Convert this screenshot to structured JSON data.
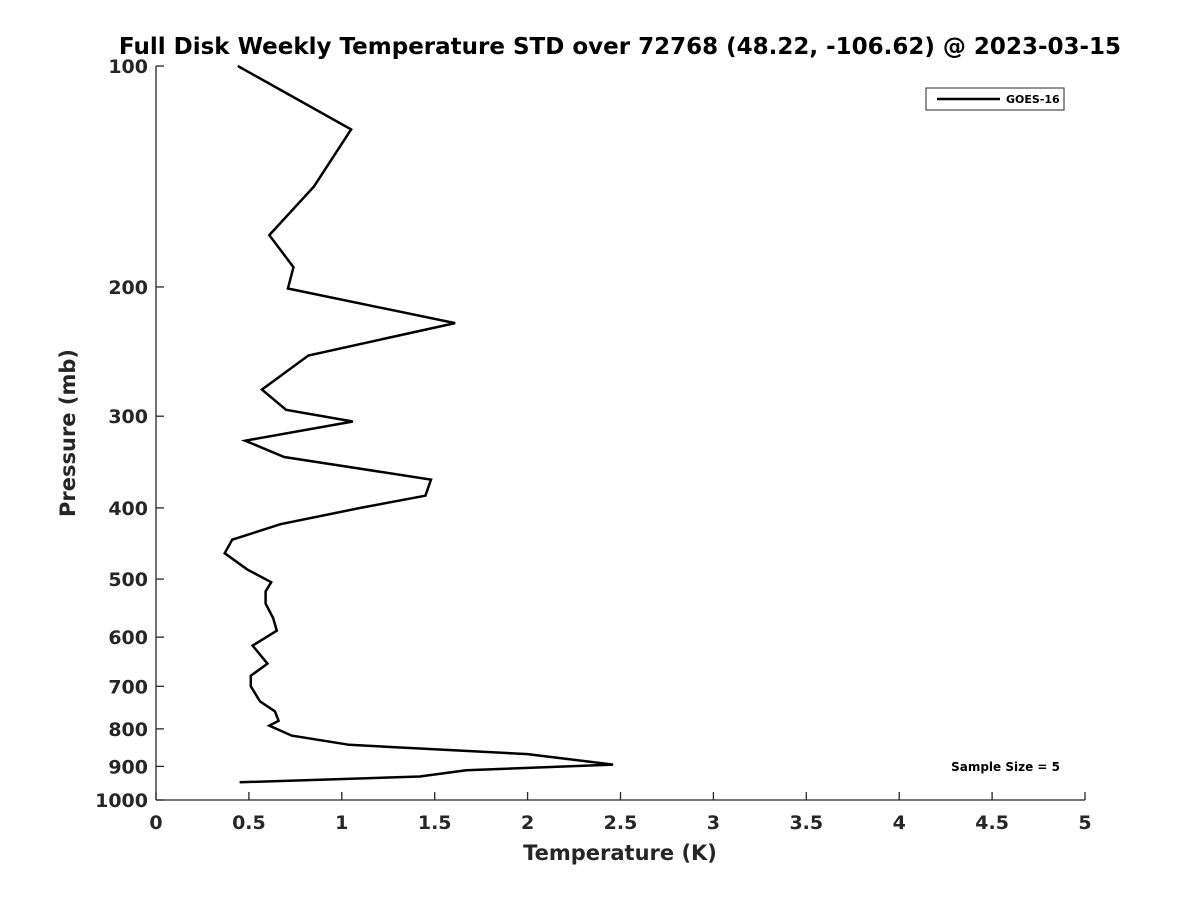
{
  "chart_data": {
    "type": "line",
    "title": "Full Disk Weekly Temperature STD over 72768 (48.22, -106.62) @ 2023-03-15",
    "xlabel": "Temperature (K)",
    "ylabel": "Pressure (mb)",
    "xlim": [
      0,
      5
    ],
    "ylim": [
      1000,
      100
    ],
    "y_scale": "log",
    "y_reversed": true,
    "x_ticks": [
      "0",
      "0.5",
      "1",
      "1.5",
      "2",
      "2.5",
      "3",
      "3.5",
      "4",
      "4.5",
      "5"
    ],
    "y_ticks": [
      "100",
      "200",
      "300",
      "400",
      "500",
      "600",
      "700",
      "800",
      "900",
      "1000"
    ],
    "grid": false,
    "legend_position": "top-right",
    "annotation": "Sample Size = 5",
    "series": [
      {
        "name": "GOES-16",
        "color": "#000000",
        "x": [
          0.44,
          1.05,
          0.85,
          0.61,
          0.74,
          0.71,
          1.61,
          0.82,
          0.57,
          0.7,
          1.06,
          0.48,
          0.69,
          1.48,
          1.45,
          1.1,
          0.67,
          0.41,
          0.37,
          0.49,
          0.62,
          0.59,
          0.59,
          0.63,
          0.65,
          0.52,
          0.6,
          0.51,
          0.51,
          0.56,
          0.64,
          0.66,
          0.61,
          0.73,
          1.04,
          2.0,
          2.46,
          1.67,
          1.42,
          0.45
        ],
        "y": [
          100,
          122,
          146,
          170,
          188,
          201,
          224,
          248,
          276,
          294,
          305,
          324,
          341,
          366,
          385,
          400,
          421,
          442,
          461,
          485,
          505,
          520,
          540,
          565,
          588,
          616,
          652,
          677,
          700,
          734,
          757,
          780,
          792,
          817,
          841,
          866,
          895,
          911,
          929,
          946
        ]
      }
    ]
  }
}
